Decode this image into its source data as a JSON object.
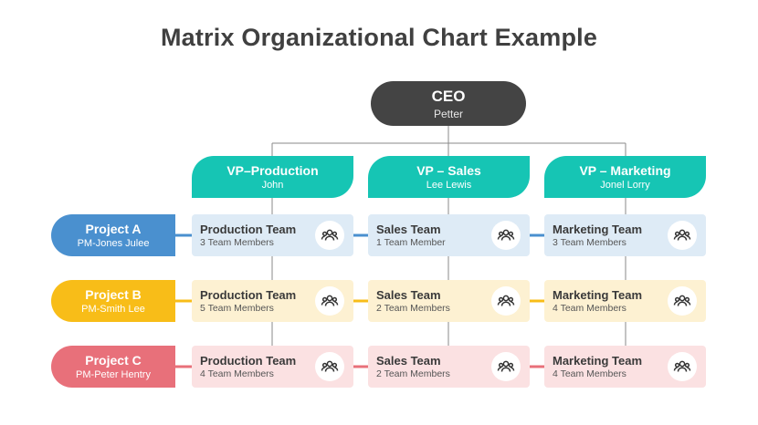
{
  "title": "Matrix Organizational Chart Example",
  "ceo": {
    "title": "CEO",
    "name": "Petter"
  },
  "vps": [
    {
      "title": "VP–Production",
      "name": "John"
    },
    {
      "title": "VP – Sales",
      "name": "Lee Lewis"
    },
    {
      "title": "VP – Marketing",
      "name": "Jonel Lorry"
    }
  ],
  "projects": [
    {
      "title": "Project A",
      "pm": "PM-Jones Julee",
      "color": "#4a90cf",
      "tint": "#deebf6",
      "teams": [
        {
          "name": "Production Team",
          "members": "3 Team Members"
        },
        {
          "name": "Sales Team",
          "members": "1 Team Member"
        },
        {
          "name": "Marketing Team",
          "members": "3 Team Members"
        }
      ]
    },
    {
      "title": "Project B",
      "pm": "PM-Smith Lee",
      "color": "#f8bd18",
      "tint": "#fdf1d2",
      "teams": [
        {
          "name": "Production Team",
          "members": "5 Team Members"
        },
        {
          "name": "Sales Team",
          "members": "2 Team Members"
        },
        {
          "name": "Marketing Team",
          "members": "4 Team Members"
        }
      ]
    },
    {
      "title": "Project C",
      "pm": "PM-Peter Hentry",
      "color": "#e8707a",
      "tint": "#fbe1e2",
      "teams": [
        {
          "name": "Production Team",
          "members": "4 Team Members"
        },
        {
          "name": "Sales Team",
          "members": "2 Team Members"
        },
        {
          "name": "Marketing Team",
          "members": "4 Team Members"
        }
      ]
    }
  ],
  "colors": {
    "ceo": "#444444",
    "vp": "#16c5b4",
    "connector": "#888888"
  },
  "icon": "team-icon"
}
